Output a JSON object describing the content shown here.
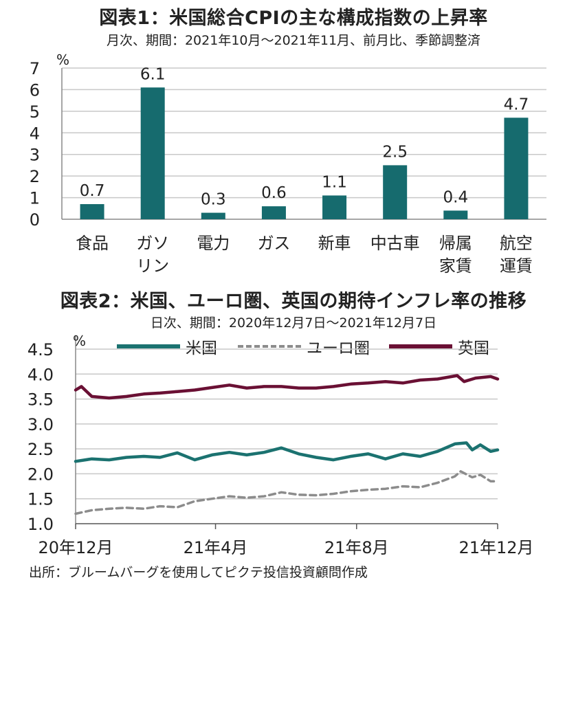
{
  "chart1_title": "図表1：米国総合CPIの主な構成指数の上昇率",
  "chart1_subtitle": "月次、期間：2021年10月～2021年11月、前月比、季節調整済",
  "chart2_title": "図表2：米国、ユーロ圏、英国の期待インフレ率の推移",
  "chart2_subtitle": "日次、期間：2020年12月7日～2021年12月7日",
  "source": "出所：ブルームバーグを使用してピクテ投信投資顧問作成",
  "colors": {
    "bar": "#166b6e",
    "us": "#1b7270",
    "euro": "#8c8c8c",
    "uk": "#6a1034",
    "grid": "#c8c8c8"
  },
  "chart_data": [
    {
      "type": "bar",
      "ylabel": "%",
      "ylim": [
        0,
        7
      ],
      "yticks": [
        "0",
        "1",
        "2",
        "3",
        "4",
        "5",
        "6",
        "7"
      ],
      "categories": [
        [
          "食品"
        ],
        [
          "ガソ",
          "リン"
        ],
        [
          "電力"
        ],
        [
          "ガス"
        ],
        [
          "新車"
        ],
        [
          "中古車"
        ],
        [
          "帰属",
          "家賃"
        ],
        [
          "航空",
          "運賃"
        ]
      ],
      "values": [
        0.7,
        6.1,
        0.3,
        0.6,
        1.1,
        2.5,
        0.4,
        4.7
      ],
      "value_labels": [
        "0.7",
        "6.1",
        "0.3",
        "0.6",
        "1.1",
        "2.5",
        "0.4",
        "4.7"
      ],
      "grid": true
    },
    {
      "type": "line",
      "ylabel": "%",
      "ylim": [
        1.0,
        4.5
      ],
      "yticks": [
        "1.0",
        "1.5",
        "2.0",
        "2.5",
        "3.0",
        "3.5",
        "4.0",
        "4.5"
      ],
      "xlim": [
        "2020-12-07",
        "2021-12-07"
      ],
      "xticks": [
        {
          "date": "2020-12-07",
          "label": "20年12月"
        },
        {
          "date": "2021-04-07",
          "label": "21年4月"
        },
        {
          "date": "2021-08-07",
          "label": "21年8月"
        },
        {
          "date": "2021-12-07",
          "label": "21年12月"
        }
      ],
      "legend_position": "top",
      "grid": true,
      "series": [
        {
          "name": "米国",
          "style": "solid",
          "points": [
            [
              "2020-12-07",
              2.25
            ],
            [
              "2020-12-21",
              2.3
            ],
            [
              "2021-01-05",
              2.28
            ],
            [
              "2021-01-20",
              2.33
            ],
            [
              "2021-02-04",
              2.35
            ],
            [
              "2021-02-18",
              2.33
            ],
            [
              "2021-03-05",
              2.42
            ],
            [
              "2021-03-20",
              2.28
            ],
            [
              "2021-04-04",
              2.38
            ],
            [
              "2021-04-19",
              2.43
            ],
            [
              "2021-05-04",
              2.38
            ],
            [
              "2021-05-19",
              2.43
            ],
            [
              "2021-06-03",
              2.52
            ],
            [
              "2021-06-18",
              2.4
            ],
            [
              "2021-07-03",
              2.33
            ],
            [
              "2021-07-18",
              2.28
            ],
            [
              "2021-08-02",
              2.35
            ],
            [
              "2021-08-17",
              2.4
            ],
            [
              "2021-09-01",
              2.3
            ],
            [
              "2021-09-16",
              2.4
            ],
            [
              "2021-10-01",
              2.35
            ],
            [
              "2021-10-16",
              2.45
            ],
            [
              "2021-10-31",
              2.6
            ],
            [
              "2021-11-10",
              2.62
            ],
            [
              "2021-11-15",
              2.48
            ],
            [
              "2021-11-22",
              2.58
            ],
            [
              "2021-12-01",
              2.45
            ],
            [
              "2021-12-07",
              2.48
            ]
          ]
        },
        {
          "name": "ユーロ圏",
          "style": "dashed",
          "points": [
            [
              "2020-12-07",
              1.2
            ],
            [
              "2020-12-21",
              1.27
            ],
            [
              "2021-01-05",
              1.3
            ],
            [
              "2021-01-20",
              1.32
            ],
            [
              "2021-02-04",
              1.3
            ],
            [
              "2021-02-18",
              1.35
            ],
            [
              "2021-03-05",
              1.33
            ],
            [
              "2021-03-20",
              1.45
            ],
            [
              "2021-04-04",
              1.5
            ],
            [
              "2021-04-19",
              1.55
            ],
            [
              "2021-05-04",
              1.52
            ],
            [
              "2021-05-19",
              1.55
            ],
            [
              "2021-06-03",
              1.63
            ],
            [
              "2021-06-18",
              1.58
            ],
            [
              "2021-07-03",
              1.57
            ],
            [
              "2021-07-18",
              1.6
            ],
            [
              "2021-08-02",
              1.65
            ],
            [
              "2021-08-17",
              1.68
            ],
            [
              "2021-09-01",
              1.7
            ],
            [
              "2021-09-16",
              1.75
            ],
            [
              "2021-10-01",
              1.73
            ],
            [
              "2021-10-16",
              1.82
            ],
            [
              "2021-10-31",
              1.95
            ],
            [
              "2021-11-05",
              2.05
            ],
            [
              "2021-11-15",
              1.93
            ],
            [
              "2021-11-22",
              1.98
            ],
            [
              "2021-12-01",
              1.85
            ],
            [
              "2021-12-07",
              1.85
            ]
          ]
        },
        {
          "name": "英国",
          "style": "solid",
          "points": [
            [
              "2020-12-07",
              3.68
            ],
            [
              "2020-12-12",
              3.75
            ],
            [
              "2020-12-21",
              3.55
            ],
            [
              "2021-01-05",
              3.52
            ],
            [
              "2021-01-20",
              3.55
            ],
            [
              "2021-02-04",
              3.6
            ],
            [
              "2021-02-18",
              3.62
            ],
            [
              "2021-03-05",
              3.65
            ],
            [
              "2021-03-20",
              3.68
            ],
            [
              "2021-04-04",
              3.73
            ],
            [
              "2021-04-19",
              3.78
            ],
            [
              "2021-05-04",
              3.72
            ],
            [
              "2021-05-19",
              3.75
            ],
            [
              "2021-06-03",
              3.75
            ],
            [
              "2021-06-18",
              3.72
            ],
            [
              "2021-07-03",
              3.72
            ],
            [
              "2021-07-18",
              3.75
            ],
            [
              "2021-08-02",
              3.8
            ],
            [
              "2021-08-17",
              3.82
            ],
            [
              "2021-09-01",
              3.85
            ],
            [
              "2021-09-16",
              3.82
            ],
            [
              "2021-10-01",
              3.88
            ],
            [
              "2021-10-16",
              3.9
            ],
            [
              "2021-11-02",
              3.97
            ],
            [
              "2021-11-08",
              3.85
            ],
            [
              "2021-11-18",
              3.92
            ],
            [
              "2021-12-01",
              3.95
            ],
            [
              "2021-12-07",
              3.9
            ]
          ]
        }
      ]
    }
  ]
}
